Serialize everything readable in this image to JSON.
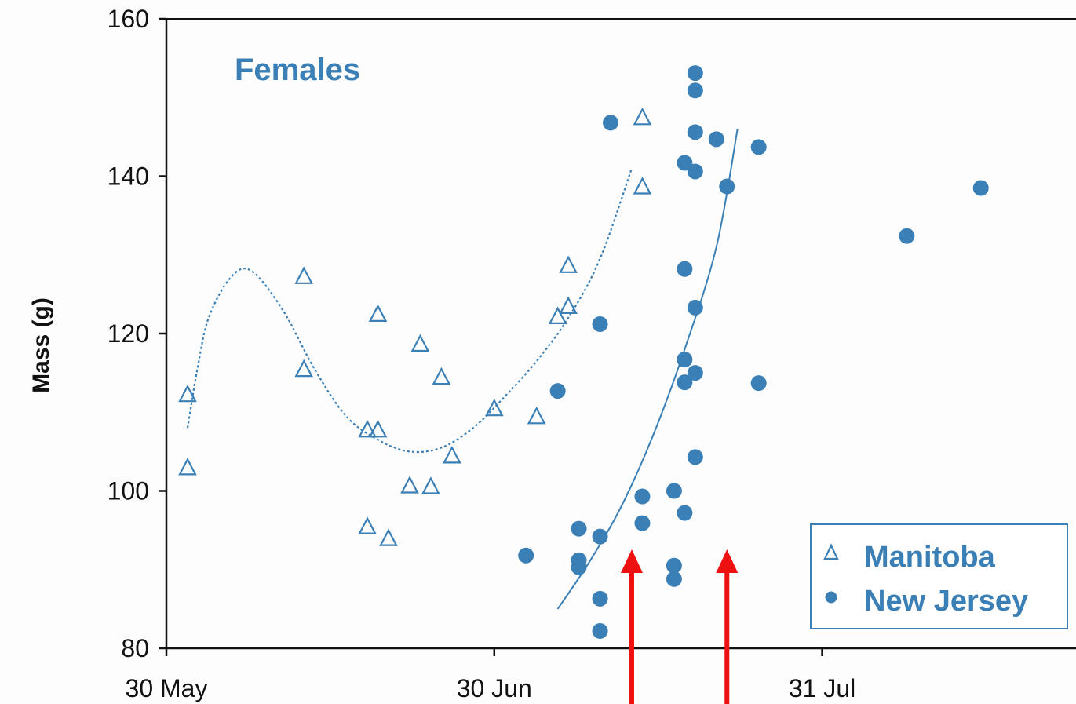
{
  "colors": {
    "series": "#3a7fb5",
    "axis": "#111111",
    "arrow": "#ee1111",
    "background": "#fdfdfd"
  },
  "chart_data": {
    "type": "scatter",
    "title": "Females",
    "xlabel": "",
    "ylabel": "Mass (g)",
    "x_type": "date",
    "xlim": [
      "2000-05-30",
      "2000-08-24"
    ],
    "ylim": [
      80,
      160
    ],
    "x_ticks": [
      {
        "date": "2000-05-30",
        "label": "30 May"
      },
      {
        "date": "2000-06-30",
        "label": "30 Jun"
      },
      {
        "date": "2000-07-31",
        "label": "31 Jul"
      }
    ],
    "y_ticks": [
      80,
      100,
      120,
      140,
      160
    ],
    "legend_position": "bottom-right",
    "series": [
      {
        "name": "Manitoba",
        "marker": "open-triangle",
        "trend": "dotted",
        "points": [
          {
            "x": "2000-06-01",
            "y": 112.3
          },
          {
            "x": "2000-06-01",
            "y": 103.0
          },
          {
            "x": "2000-06-12",
            "y": 127.3
          },
          {
            "x": "2000-06-12",
            "y": 115.5
          },
          {
            "x": "2000-06-18",
            "y": 107.8
          },
          {
            "x": "2000-06-18",
            "y": 95.5
          },
          {
            "x": "2000-06-19",
            "y": 107.8
          },
          {
            "x": "2000-06-19",
            "y": 122.5
          },
          {
            "x": "2000-06-20",
            "y": 94.0
          },
          {
            "x": "2000-06-22",
            "y": 100.7
          },
          {
            "x": "2000-06-23",
            "y": 118.7
          },
          {
            "x": "2000-06-24",
            "y": 100.6
          },
          {
            "x": "2000-06-25",
            "y": 114.5
          },
          {
            "x": "2000-06-26",
            "y": 104.5
          },
          {
            "x": "2000-06-30",
            "y": 110.5
          },
          {
            "x": "2000-07-04",
            "y": 109.5
          },
          {
            "x": "2000-07-06",
            "y": 122.2
          },
          {
            "x": "2000-07-07",
            "y": 128.7
          },
          {
            "x": "2000-07-07",
            "y": 123.5
          },
          {
            "x": "2000-07-14",
            "y": 147.5
          },
          {
            "x": "2000-07-14",
            "y": 138.7
          }
        ],
        "trend_points": [
          {
            "x": "2000-06-01",
            "y": 108
          },
          {
            "x": "2000-06-02",
            "y": 116
          },
          {
            "x": "2000-06-03",
            "y": 122
          },
          {
            "x": "2000-06-05",
            "y": 127
          },
          {
            "x": "2000-06-07",
            "y": 128
          },
          {
            "x": "2000-06-10",
            "y": 123
          },
          {
            "x": "2000-06-13",
            "y": 115.5
          },
          {
            "x": "2000-06-16",
            "y": 109.5
          },
          {
            "x": "2000-06-19",
            "y": 106.5
          },
          {
            "x": "2000-06-22",
            "y": 105
          },
          {
            "x": "2000-06-25",
            "y": 105.5
          },
          {
            "x": "2000-06-28",
            "y": 108
          },
          {
            "x": "2000-07-01",
            "y": 112
          },
          {
            "x": "2000-07-04",
            "y": 116.5
          },
          {
            "x": "2000-07-07",
            "y": 122
          },
          {
            "x": "2000-07-10",
            "y": 129.5
          },
          {
            "x": "2000-07-13",
            "y": 141
          }
        ]
      },
      {
        "name": "New Jersey",
        "marker": "filled-circle",
        "trend": "solid",
        "points": [
          {
            "x": "2000-07-03",
            "y": 91.8
          },
          {
            "x": "2000-07-06",
            "y": 112.7
          },
          {
            "x": "2000-07-08",
            "y": 95.2
          },
          {
            "x": "2000-07-08",
            "y": 91.2
          },
          {
            "x": "2000-07-08",
            "y": 90.3
          },
          {
            "x": "2000-07-10",
            "y": 94.2
          },
          {
            "x": "2000-07-10",
            "y": 86.3
          },
          {
            "x": "2000-07-10",
            "y": 82.2
          },
          {
            "x": "2000-07-10",
            "y": 121.2
          },
          {
            "x": "2000-07-11",
            "y": 146.8
          },
          {
            "x": "2000-07-14",
            "y": 99.3
          },
          {
            "x": "2000-07-14",
            "y": 95.9
          },
          {
            "x": "2000-07-17",
            "y": 100.0
          },
          {
            "x": "2000-07-17",
            "y": 90.5
          },
          {
            "x": "2000-07-17",
            "y": 88.8
          },
          {
            "x": "2000-07-18",
            "y": 116.7
          },
          {
            "x": "2000-07-18",
            "y": 113.8
          },
          {
            "x": "2000-07-18",
            "y": 128.2
          },
          {
            "x": "2000-07-18",
            "y": 141.7
          },
          {
            "x": "2000-07-18",
            "y": 97.2
          },
          {
            "x": "2000-07-19",
            "y": 153.1
          },
          {
            "x": "2000-07-19",
            "y": 150.9
          },
          {
            "x": "2000-07-19",
            "y": 145.6
          },
          {
            "x": "2000-07-19",
            "y": 140.6
          },
          {
            "x": "2000-07-19",
            "y": 123.3
          },
          {
            "x": "2000-07-19",
            "y": 115.0
          },
          {
            "x": "2000-07-19",
            "y": 104.3
          },
          {
            "x": "2000-07-21",
            "y": 144.7
          },
          {
            "x": "2000-07-22",
            "y": 138.7
          },
          {
            "x": "2000-07-25",
            "y": 143.7
          },
          {
            "x": "2000-07-25",
            "y": 113.7
          },
          {
            "x": "2000-08-08",
            "y": 132.4
          },
          {
            "x": "2000-08-15",
            "y": 138.5
          }
        ],
        "trend_points": [
          {
            "x": "2000-07-06",
            "y": 85
          },
          {
            "x": "2000-07-09",
            "y": 91
          },
          {
            "x": "2000-07-12",
            "y": 98
          },
          {
            "x": "2000-07-15",
            "y": 107
          },
          {
            "x": "2000-07-18",
            "y": 118
          },
          {
            "x": "2000-07-21",
            "y": 131
          },
          {
            "x": "2000-07-23",
            "y": 146
          }
        ]
      }
    ],
    "annotations": [
      {
        "type": "arrow",
        "x": "2000-07-13"
      },
      {
        "type": "arrow",
        "x": "2000-07-22"
      }
    ]
  }
}
